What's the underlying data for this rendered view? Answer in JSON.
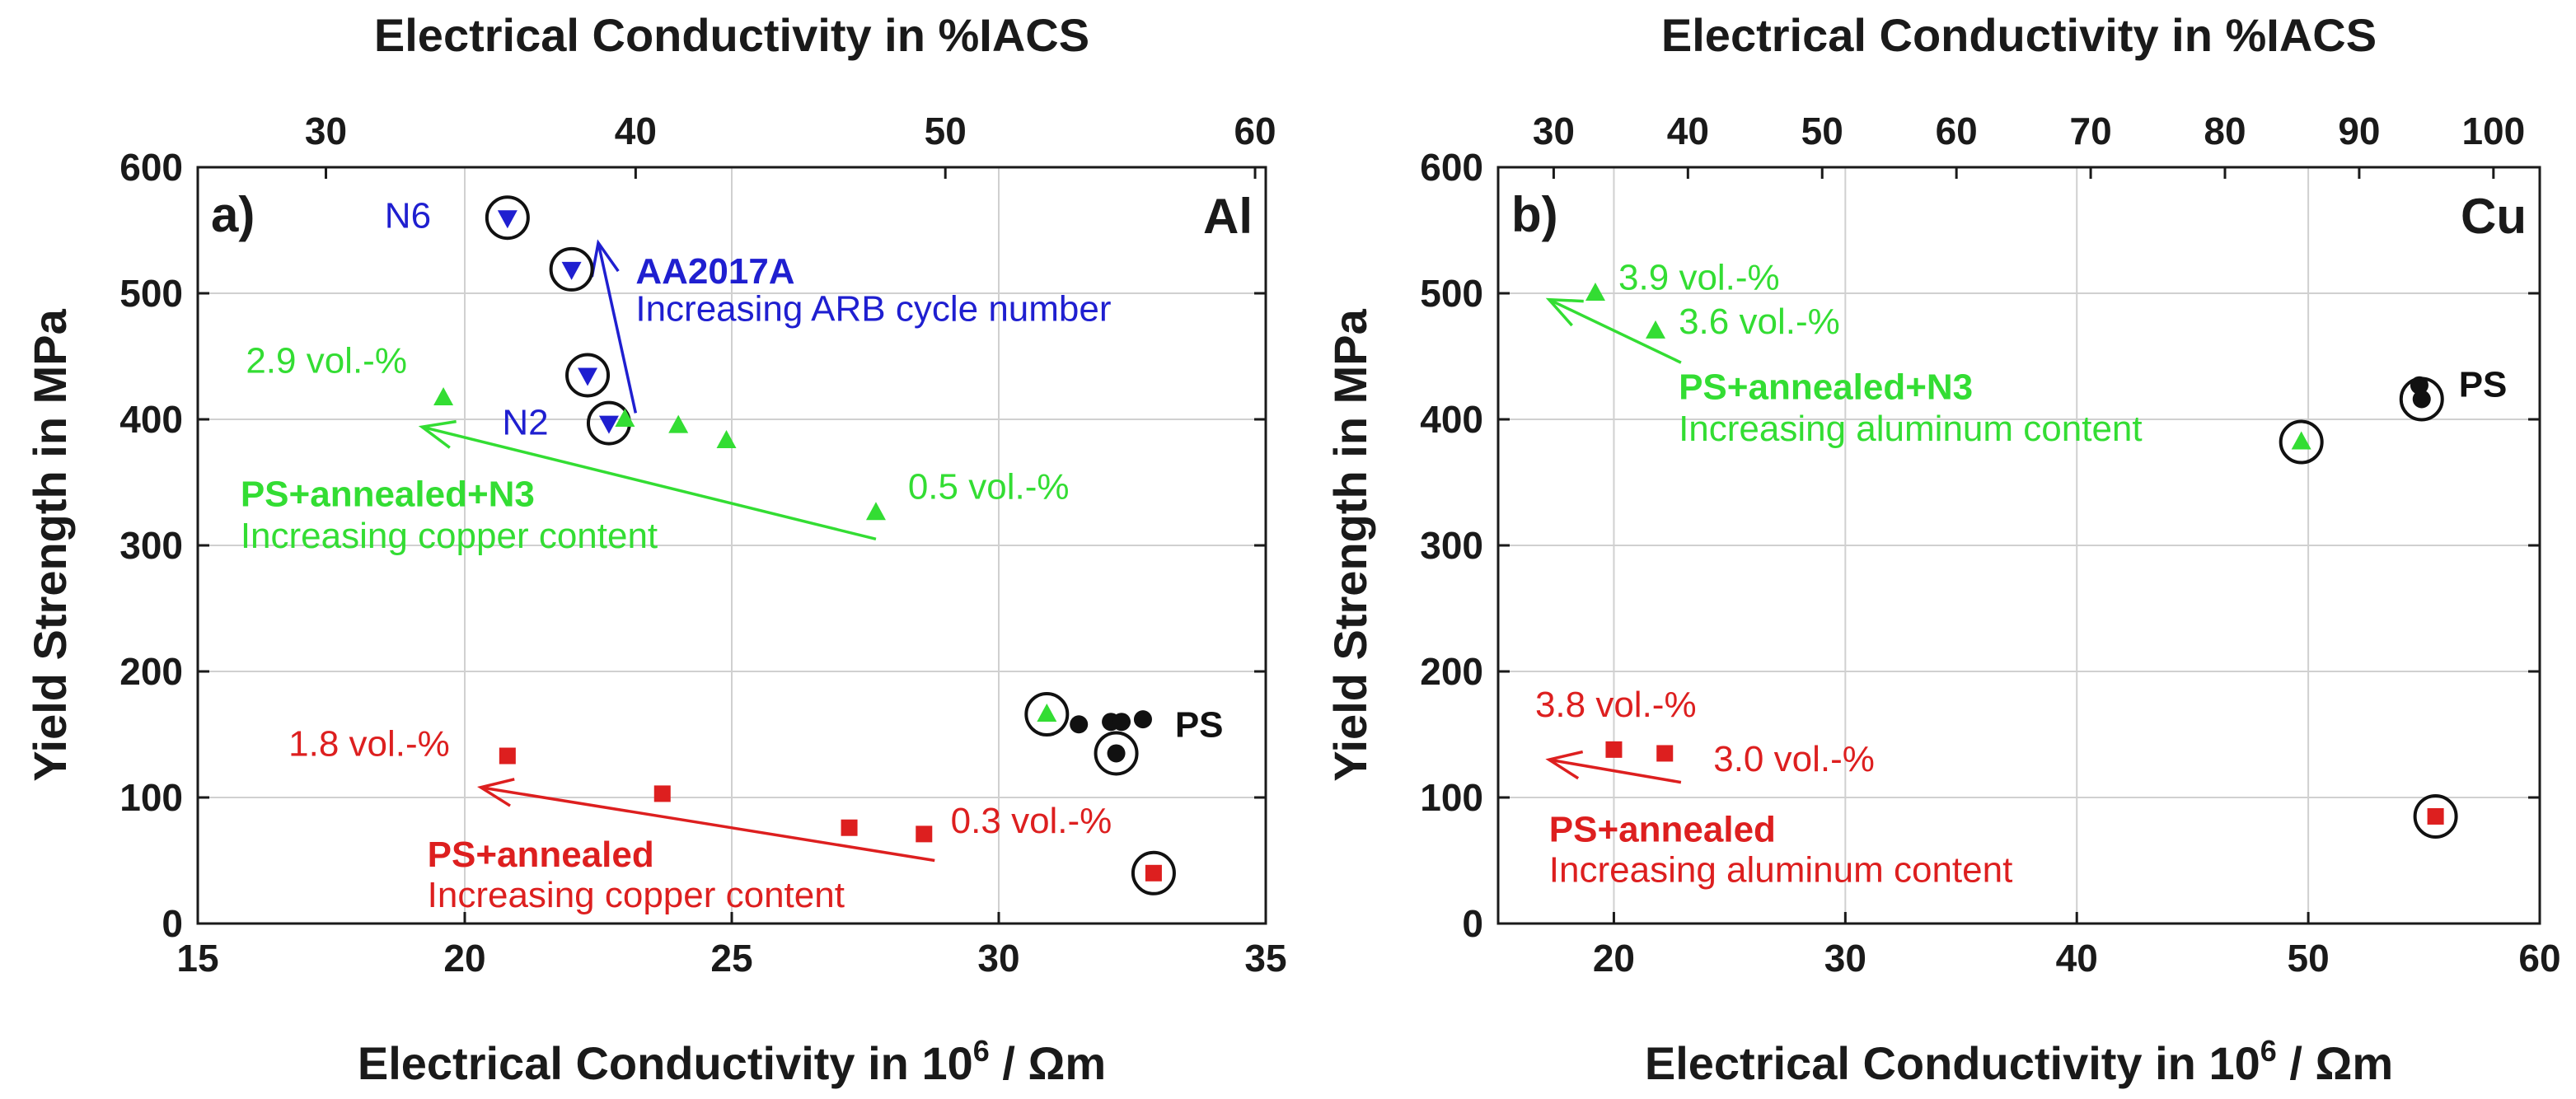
{
  "chart_data": [
    {
      "type": "scatter",
      "panel_label": "a)",
      "material_label": "Al",
      "title_top": "Electrical Conductivity in %IACS",
      "xlabel": "Electrical Conductivity in 10^6 / Ωm",
      "xlabel_main": "Electrical Conductivity in 10",
      "xlabel_sup": "6",
      "xlabel_tail": " / Ωm",
      "ylabel": "Yield Strength in MPa",
      "xlim": [
        15,
        35
      ],
      "ylim": [
        0,
        600
      ],
      "x_ticks": [
        "15",
        "20",
        "25",
        "30",
        "35"
      ],
      "y_ticks": [
        "0",
        "100",
        "200",
        "300",
        "400",
        "500",
        "600"
      ],
      "top_ticks": [
        "30",
        "40",
        "50",
        "60"
      ],
      "top_tick_values": [
        30,
        40,
        50,
        60
      ],
      "grid": true,
      "colors": {
        "blue": "#1f1fd0",
        "green": "#33dd33",
        "red": "#dd1f1f",
        "black": "#111111"
      },
      "series": [
        {
          "name": "AA2017A",
          "color": "#1f1fd0",
          "marker": "triangle-down",
          "x": [
            20.8,
            22.0,
            22.3,
            22.7
          ],
          "y": [
            560,
            519,
            435,
            397
          ],
          "circled": [
            true,
            true,
            true,
            true
          ]
        },
        {
          "name": "PS+annealed+N3",
          "color": "#33dd33",
          "marker": "triangle-up",
          "x": [
            19.6,
            23.0,
            24.0,
            24.9,
            27.7,
            30.9
          ],
          "y": [
            417,
            400,
            395,
            383,
            326,
            166
          ],
          "circled": [
            false,
            false,
            false,
            false,
            false,
            true
          ]
        },
        {
          "name": "PS+annealed",
          "color": "#dd1f1f",
          "marker": "square",
          "x": [
            20.8,
            23.7,
            27.2,
            28.6,
            32.9
          ],
          "y": [
            133,
            103,
            76,
            71,
            40
          ],
          "circled": [
            false,
            false,
            false,
            false,
            true
          ]
        },
        {
          "name": "PS",
          "color": "#111111",
          "marker": "circle",
          "x": [
            31.5,
            32.1,
            32.3,
            32.7,
            32.2
          ],
          "y": [
            158,
            160,
            160,
            162,
            135
          ],
          "circled": [
            false,
            false,
            false,
            false,
            true
          ]
        }
      ],
      "annotations": [
        {
          "text": "N6",
          "color": "#1f1fd0",
          "bold": false,
          "x": 18.5,
          "y": 552
        },
        {
          "text": "N2",
          "color": "#1f1fd0",
          "bold": false,
          "x": 20.7,
          "y": 388
        },
        {
          "text": "AA2017A",
          "color": "#1f1fd0",
          "bold": true,
          "x": 23.2,
          "y": 508
        },
        {
          "text": "Increasing ARB cycle number",
          "color": "#1f1fd0",
          "bold": false,
          "x": 23.2,
          "y": 478
        },
        {
          "text": "2.9 vol.-%",
          "color": "#33dd33",
          "bold": false,
          "x": 15.9,
          "y": 437
        },
        {
          "text": "0.5 vol.-%",
          "color": "#33dd33",
          "bold": false,
          "x": 28.3,
          "y": 337
        },
        {
          "text": "PS+annealed+N3",
          "color": "#33dd33",
          "bold": true,
          "x": 15.8,
          "y": 331
        },
        {
          "text": "Increasing copper content",
          "color": "#33dd33",
          "bold": false,
          "x": 15.8,
          "y": 298
        },
        {
          "text": "PS",
          "color": "#111111",
          "bold": true,
          "x": 33.3,
          "y": 148
        },
        {
          "text": "1.8 vol.-%",
          "color": "#dd1f1f",
          "bold": false,
          "x": 16.7,
          "y": 133
        },
        {
          "text": "0.3 vol.-%",
          "color": "#dd1f1f",
          "bold": false,
          "x": 29.1,
          "y": 72
        },
        {
          "text": "PS+annealed",
          "color": "#dd1f1f",
          "bold": true,
          "x": 19.3,
          "y": 45
        },
        {
          "text": "Increasing copper content",
          "color": "#dd1f1f",
          "bold": false,
          "x": 19.3,
          "y": 13
        }
      ],
      "arrows": [
        {
          "color": "#1f1fd0",
          "from": [
            23.2,
            405
          ],
          "to": [
            22.5,
            540
          ]
        },
        {
          "color": "#33dd33",
          "from": [
            27.7,
            305
          ],
          "to": [
            19.2,
            394
          ]
        },
        {
          "color": "#dd1f1f",
          "from": [
            28.8,
            50
          ],
          "to": [
            20.3,
            108
          ]
        }
      ]
    },
    {
      "type": "scatter",
      "panel_label": "b)",
      "material_label": "Cu",
      "title_top": "Electrical Conductivity in %IACS",
      "xlabel": "Electrical Conductivity in 10^6 / Ωm",
      "xlabel_main": "Electrical Conductivity in 10",
      "xlabel_sup": "6",
      "xlabel_tail": " / Ωm",
      "ylabel": "Yield Strength in MPa",
      "xlim": [
        15,
        60
      ],
      "ylim": [
        0,
        600
      ],
      "x_ticks": [
        "20",
        "30",
        "40",
        "50",
        "60"
      ],
      "x_tick_values": [
        20,
        30,
        40,
        50,
        60
      ],
      "y_ticks": [
        "0",
        "100",
        "200",
        "300",
        "400",
        "500",
        "600"
      ],
      "top_ticks": [
        "30",
        "40",
        "50",
        "60",
        "70",
        "80",
        "90",
        "100"
      ],
      "top_tick_values": [
        30,
        40,
        50,
        60,
        70,
        80,
        90,
        100
      ],
      "grid": true,
      "colors": {
        "blue": "#1f1fd0",
        "green": "#33dd33",
        "red": "#dd1f1f",
        "black": "#111111"
      },
      "series": [
        {
          "name": "PS+annealed+N3",
          "color": "#33dd33",
          "marker": "triangle-up",
          "x": [
            19.2,
            21.8,
            49.7
          ],
          "y": [
            500,
            470,
            382
          ],
          "circled": [
            false,
            false,
            true
          ]
        },
        {
          "name": "PS+annealed",
          "color": "#dd1f1f",
          "marker": "square",
          "x": [
            20.0,
            22.2,
            55.5
          ],
          "y": [
            138,
            135,
            85
          ],
          "circled": [
            false,
            false,
            true
          ]
        },
        {
          "name": "PS",
          "color": "#111111",
          "marker": "circle",
          "x": [
            54.8,
            54.9
          ],
          "y": [
            427,
            416
          ],
          "circled": [
            false,
            true
          ]
        }
      ],
      "annotations": [
        {
          "text": "3.9 vol.-%",
          "color": "#33dd33",
          "bold": false,
          "x": 20.2,
          "y": 503
        },
        {
          "text": "3.6 vol.-%",
          "color": "#33dd33",
          "bold": false,
          "x": 22.8,
          "y": 468
        },
        {
          "text": "PS+annealed+N3",
          "color": "#33dd33",
          "bold": true,
          "x": 22.8,
          "y": 416
        },
        {
          "text": "Increasing aluminum content",
          "color": "#33dd33",
          "bold": false,
          "x": 22.8,
          "y": 383
        },
        {
          "text": "PS",
          "color": "#111111",
          "bold": true,
          "x": 56.5,
          "y": 418
        },
        {
          "text": "3.8 vol.-%",
          "color": "#dd1f1f",
          "bold": false,
          "x": 16.6,
          "y": 164
        },
        {
          "text": "3.0 vol.-%",
          "color": "#dd1f1f",
          "bold": false,
          "x": 24.3,
          "y": 121
        },
        {
          "text": "PS+annealed",
          "color": "#dd1f1f",
          "bold": true,
          "x": 17.2,
          "y": 65
        },
        {
          "text": "Increasing aluminum content",
          "color": "#dd1f1f",
          "bold": false,
          "x": 17.2,
          "y": 33
        }
      ],
      "arrows": [
        {
          "color": "#33dd33",
          "from": [
            22.9,
            445
          ],
          "to": [
            17.2,
            495
          ]
        },
        {
          "color": "#dd1f1f",
          "from": [
            22.9,
            112
          ],
          "to": [
            17.2,
            130
          ]
        }
      ]
    }
  ]
}
